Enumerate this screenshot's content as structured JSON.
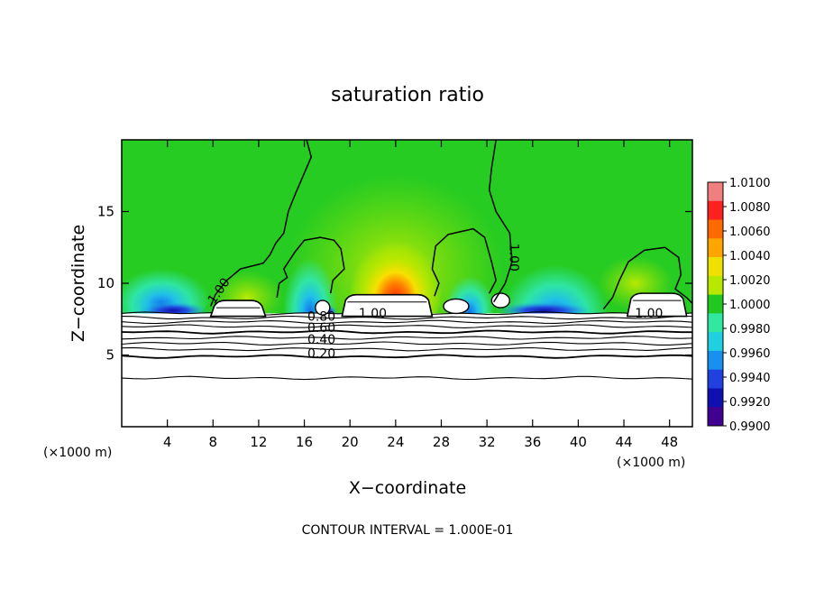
{
  "chart_data": {
    "type": "heatmap",
    "title": "saturation ratio",
    "xlabel": "X−coordinate",
    "ylabel": "Z−coordinate",
    "x_unit_left": "(×1000 m)",
    "x_unit_right": "(×1000 m)",
    "xlim": [
      0,
      50
    ],
    "ylim": [
      0,
      20
    ],
    "x_ticks": [
      4,
      8,
      12,
      16,
      20,
      24,
      28,
      32,
      36,
      40,
      44,
      48
    ],
    "y_ticks": [
      5,
      10,
      15
    ],
    "colorbar": {
      "min": 0.99,
      "max": 1.01,
      "tick_labels": [
        "1.0100",
        "1.0080",
        "1.0060",
        "1.0040",
        "1.0020",
        "1.0000",
        "0.9980",
        "0.9960",
        "0.9940",
        "0.9920",
        "0.9900"
      ],
      "colors": [
        "#f08080",
        "#ff2020",
        "#ff6a00",
        "#ffa500",
        "#f0e000",
        "#b8e800",
        "#22c822",
        "#30e8a0",
        "#20d0e0",
        "#1890f0",
        "#2040e0",
        "#1010b0",
        "#400090"
      ]
    },
    "contour_interval": "CONTOUR INTERVAL = 1.000E-01",
    "contour_labels": [
      {
        "text": "1.00",
        "x": 8.8,
        "z": 9.3
      },
      {
        "text": "1.00",
        "x": 22.0,
        "z": 7.6
      },
      {
        "text": "1.00",
        "x": 34.0,
        "z": 11.8
      },
      {
        "text": "1.00",
        "x": 46.2,
        "z": 7.6
      },
      {
        "text": "0.80",
        "x": 17.5,
        "z": 7.4
      },
      {
        "text": "0.60",
        "x": 17.5,
        "z": 6.6
      },
      {
        "text": "0.40",
        "x": 17.5,
        "z": 5.8
      },
      {
        "text": "0.20",
        "x": 17.5,
        "z": 4.8
      }
    ],
    "stable_layer_levels_z": [
      7.9,
      7.6,
      7.3,
      7.0,
      6.6,
      6.2,
      5.8,
      5.4,
      4.9,
      3.4
    ],
    "cloud_tops": [
      {
        "x0": 7.8,
        "x1": 12.6,
        "z": 8.8
      },
      {
        "x0": 19.3,
        "x1": 27.2,
        "z": 9.2
      },
      {
        "x0": 44.3,
        "x1": 49.5,
        "z": 9.3
      }
    ],
    "supersaturation_max": {
      "x": 24,
      "z": 10.0,
      "value": 1.008
    },
    "subsaturation_min": {
      "x": 37,
      "z": 8.2,
      "value": 0.9925
    }
  }
}
